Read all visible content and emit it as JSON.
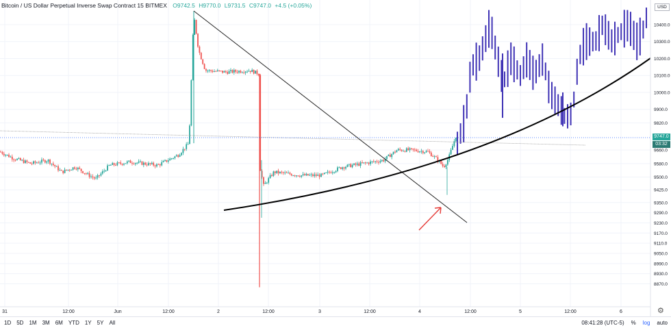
{
  "legend": {
    "title": "Bitcoin / US Dollar Perpetual Inverse Swap Contract 15 BITMEX",
    "open": "O9742.5",
    "high": "H9770.0",
    "low": "L9731.5",
    "close": "C9747.0",
    "change": "+4.5 (+0.05%)"
  },
  "currency": "USD",
  "last_price": "9747.0",
  "countdown": "03:32",
  "price_axis": [
    "10400.0",
    "10300.0",
    "10200.0",
    "10100.0",
    "10000.0",
    "9900.0",
    "9820.0",
    "9660.0",
    "9580.0",
    "9500.0",
    "9425.0",
    "9350.0",
    "9290.0",
    "9230.0",
    "9170.0",
    "9110.0",
    "9050.0",
    "8990.0",
    "8930.0",
    "8870.0"
  ],
  "time_axis": [
    "31",
    "12:00",
    "Jun",
    "12:00",
    "2",
    "12:00",
    "3",
    "12:00",
    "4",
    "12:00",
    "5",
    "12:00",
    "6"
  ],
  "ranges": [
    "1D",
    "5D",
    "1M",
    "3M",
    "6M",
    "YTD",
    "1Y",
    "5Y",
    "All"
  ],
  "clock": "08:41:28 (UTC-5)",
  "percent_label": "%",
  "log_label": "log",
  "auto_label": "auto",
  "colors": {
    "up": "#26a69a",
    "down": "#ef5350",
    "drawn": "#3f32b5",
    "axis_text": "#131722",
    "last_price_bg": "#26a69a",
    "countdown_bg": "#2a7a73",
    "arrow": "#e53935"
  },
  "chart_data": {
    "type": "candlestick",
    "price_range": [
      8850,
      10480
    ],
    "drawings": [
      "descending trendline",
      "ascending curve",
      "projected price bars",
      "red arrow"
    ]
  }
}
